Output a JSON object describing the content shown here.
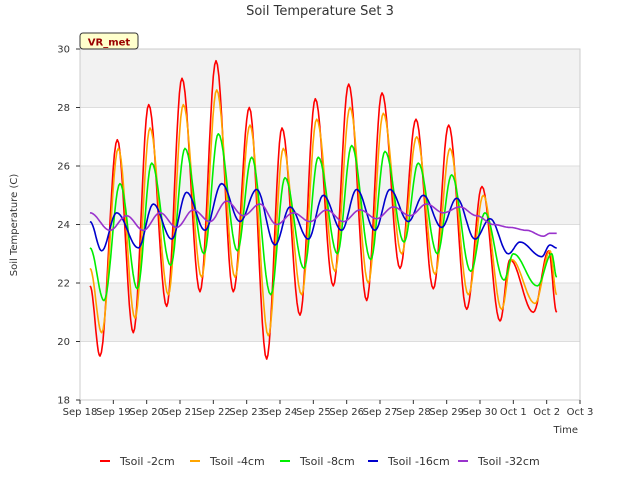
{
  "chart_data": {
    "type": "line",
    "title": "Soil Temperature Set 3",
    "xlabel": "Time",
    "ylabel": "Soil Temperature (C)",
    "ylim": [
      18,
      30
    ],
    "xlim": [
      0,
      15
    ],
    "yticks": [
      18,
      20,
      22,
      24,
      26,
      28,
      30
    ],
    "xticks": [
      {
        "v": 0,
        "label": "Sep 18"
      },
      {
        "v": 1,
        "label": "Sep 19"
      },
      {
        "v": 2,
        "label": "Sep 20"
      },
      {
        "v": 3,
        "label": "Sep 21"
      },
      {
        "v": 4,
        "label": "Sep 22"
      },
      {
        "v": 5,
        "label": "Sep 23"
      },
      {
        "v": 6,
        "label": "Sep 24"
      },
      {
        "v": 7,
        "label": "Sep 25"
      },
      {
        "v": 8,
        "label": "Sep 26"
      },
      {
        "v": 9,
        "label": "Sep 27"
      },
      {
        "v": 10,
        "label": "Sep 28"
      },
      {
        "v": 11,
        "label": "Sep 29"
      },
      {
        "v": 12,
        "label": "Sep 30"
      },
      {
        "v": 13,
        "label": "Oct 1"
      },
      {
        "v": 14,
        "label": "Oct 2"
      },
      {
        "v": 15,
        "label": "Oct 3"
      }
    ],
    "x_unit": "days since Sep 18",
    "grid": true,
    "legend_position": "bottom",
    "annotation": "VR_met",
    "series": [
      {
        "name": "Tsoil -2cm",
        "color": "#ff0000",
        "points": [
          [
            0.3,
            21.9
          ],
          [
            0.6,
            19.5
          ],
          [
            1.12,
            26.9
          ],
          [
            1.6,
            20.3
          ],
          [
            2.06,
            28.1
          ],
          [
            2.6,
            21.2
          ],
          [
            3.06,
            29.0
          ],
          [
            3.6,
            21.7
          ],
          [
            4.08,
            29.6
          ],
          [
            4.6,
            21.7
          ],
          [
            5.08,
            28.0
          ],
          [
            5.6,
            19.4
          ],
          [
            6.06,
            27.3
          ],
          [
            6.6,
            20.9
          ],
          [
            7.06,
            28.3
          ],
          [
            7.6,
            21.9
          ],
          [
            8.06,
            28.8
          ],
          [
            8.6,
            21.4
          ],
          [
            9.06,
            28.5
          ],
          [
            9.6,
            22.5
          ],
          [
            10.08,
            27.6
          ],
          [
            10.6,
            21.8
          ],
          [
            11.06,
            27.4
          ],
          [
            11.6,
            21.1
          ],
          [
            12.06,
            25.3
          ],
          [
            12.6,
            20.7
          ],
          [
            12.9,
            22.8
          ],
          [
            13.6,
            21.0
          ],
          [
            14.06,
            23.1
          ],
          [
            14.3,
            21.0
          ]
        ]
      },
      {
        "name": "Tsoil -4cm",
        "color": "#ffa500",
        "points": [
          [
            0.3,
            22.5
          ],
          [
            0.65,
            20.3
          ],
          [
            1.15,
            26.6
          ],
          [
            1.65,
            20.8
          ],
          [
            2.1,
            27.3
          ],
          [
            2.65,
            21.6
          ],
          [
            3.1,
            28.1
          ],
          [
            3.65,
            22.2
          ],
          [
            4.1,
            28.6
          ],
          [
            4.65,
            22.2
          ],
          [
            5.1,
            27.4
          ],
          [
            5.65,
            20.2
          ],
          [
            6.1,
            26.6
          ],
          [
            6.65,
            21.6
          ],
          [
            7.1,
            27.6
          ],
          [
            7.65,
            22.4
          ],
          [
            8.1,
            28.0
          ],
          [
            8.65,
            22.0
          ],
          [
            9.1,
            27.8
          ],
          [
            9.65,
            23.0
          ],
          [
            10.1,
            27.0
          ],
          [
            10.65,
            22.3
          ],
          [
            11.1,
            26.6
          ],
          [
            11.65,
            21.6
          ],
          [
            12.1,
            25.0
          ],
          [
            12.65,
            21.1
          ],
          [
            12.95,
            22.8
          ],
          [
            13.65,
            21.3
          ],
          [
            14.1,
            23.1
          ],
          [
            14.3,
            21.6
          ]
        ]
      },
      {
        "name": "Tsoil -8cm",
        "color": "#00ee00",
        "points": [
          [
            0.3,
            23.2
          ],
          [
            0.72,
            21.4
          ],
          [
            1.2,
            25.4
          ],
          [
            1.72,
            21.8
          ],
          [
            2.15,
            26.1
          ],
          [
            2.72,
            22.6
          ],
          [
            3.15,
            26.6
          ],
          [
            3.72,
            23.0
          ],
          [
            4.15,
            27.1
          ],
          [
            4.72,
            23.1
          ],
          [
            5.15,
            26.3
          ],
          [
            5.72,
            21.6
          ],
          [
            6.15,
            25.6
          ],
          [
            6.72,
            22.5
          ],
          [
            7.15,
            26.3
          ],
          [
            7.72,
            23.0
          ],
          [
            8.15,
            26.7
          ],
          [
            8.72,
            22.8
          ],
          [
            9.15,
            26.5
          ],
          [
            9.72,
            23.4
          ],
          [
            10.15,
            26.1
          ],
          [
            10.72,
            23.0
          ],
          [
            11.15,
            25.7
          ],
          [
            11.72,
            22.4
          ],
          [
            12.15,
            24.4
          ],
          [
            12.72,
            22.1
          ],
          [
            13.0,
            23.0
          ],
          [
            13.72,
            21.9
          ],
          [
            14.15,
            23.0
          ],
          [
            14.3,
            22.2
          ]
        ]
      },
      {
        "name": "Tsoil -16cm",
        "color": "#0000cc",
        "points": [
          [
            0.3,
            24.1
          ],
          [
            0.65,
            23.1
          ],
          [
            1.1,
            24.4
          ],
          [
            1.75,
            23.2
          ],
          [
            2.2,
            24.7
          ],
          [
            2.75,
            23.5
          ],
          [
            3.2,
            25.1
          ],
          [
            3.75,
            23.8
          ],
          [
            4.25,
            25.4
          ],
          [
            4.8,
            24.1
          ],
          [
            5.3,
            25.2
          ],
          [
            5.85,
            23.3
          ],
          [
            6.3,
            24.6
          ],
          [
            6.85,
            23.5
          ],
          [
            7.3,
            25.0
          ],
          [
            7.85,
            23.8
          ],
          [
            8.3,
            25.2
          ],
          [
            8.85,
            23.8
          ],
          [
            9.3,
            25.2
          ],
          [
            9.85,
            24.1
          ],
          [
            10.3,
            25.0
          ],
          [
            10.85,
            23.9
          ],
          [
            11.3,
            24.9
          ],
          [
            11.85,
            23.5
          ],
          [
            12.3,
            24.2
          ],
          [
            12.85,
            23.0
          ],
          [
            13.2,
            23.4
          ],
          [
            13.85,
            22.9
          ],
          [
            14.1,
            23.3
          ],
          [
            14.3,
            23.2
          ]
        ]
      },
      {
        "name": "Tsoil -32cm",
        "color": "#9933cc",
        "points": [
          [
            0.3,
            24.4
          ],
          [
            0.9,
            23.8
          ],
          [
            1.4,
            24.3
          ],
          [
            1.9,
            23.8
          ],
          [
            2.4,
            24.4
          ],
          [
            2.9,
            23.9
          ],
          [
            3.4,
            24.5
          ],
          [
            3.9,
            24.1
          ],
          [
            4.4,
            24.8
          ],
          [
            4.9,
            24.3
          ],
          [
            5.4,
            24.7
          ],
          [
            5.9,
            24.0
          ],
          [
            6.4,
            24.4
          ],
          [
            6.9,
            24.1
          ],
          [
            7.4,
            24.5
          ],
          [
            7.9,
            24.1
          ],
          [
            8.4,
            24.5
          ],
          [
            8.9,
            24.2
          ],
          [
            9.4,
            24.6
          ],
          [
            9.9,
            24.3
          ],
          [
            10.4,
            24.7
          ],
          [
            10.9,
            24.4
          ],
          [
            11.4,
            24.6
          ],
          [
            11.9,
            24.3
          ],
          [
            12.4,
            24.0
          ],
          [
            12.9,
            23.9
          ],
          [
            13.4,
            23.8
          ],
          [
            13.9,
            23.6
          ],
          [
            14.1,
            23.7
          ],
          [
            14.3,
            23.7
          ]
        ]
      }
    ]
  }
}
